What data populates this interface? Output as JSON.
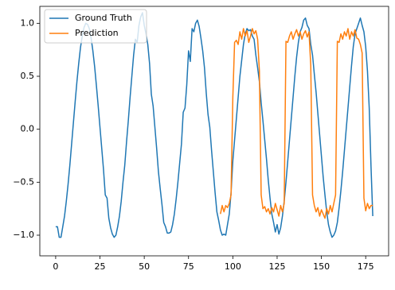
{
  "chart_data": {
    "type": "line",
    "x": [
      0,
      1,
      2,
      3,
      4,
      5,
      6,
      7,
      8,
      9,
      10,
      11,
      12,
      13,
      14,
      15,
      16,
      17,
      18,
      19,
      20,
      21,
      22,
      23,
      24,
      25,
      26,
      27,
      28,
      29,
      30,
      31,
      32,
      33,
      34,
      35,
      36,
      37,
      38,
      39,
      40,
      41,
      42,
      43,
      44,
      45,
      46,
      47,
      48,
      49,
      50,
      51,
      52,
      53,
      54,
      55,
      56,
      57,
      58,
      59,
      60,
      61,
      62,
      63,
      64,
      65,
      66,
      67,
      68,
      69,
      70,
      71,
      72,
      73,
      74,
      75,
      76,
      77,
      78,
      79,
      80,
      81,
      82,
      83,
      84,
      85,
      86,
      87,
      88,
      89,
      90,
      91,
      92,
      93,
      94,
      95,
      96,
      97,
      98,
      99,
      100,
      101,
      102,
      103,
      104,
      105,
      106,
      107,
      108,
      109,
      110,
      111,
      112,
      113,
      114,
      115,
      116,
      117,
      118,
      119,
      120,
      121,
      122,
      123,
      124,
      125,
      126,
      127,
      128,
      129,
      130,
      131,
      132,
      133,
      134,
      135,
      136,
      137,
      138,
      139,
      140,
      141,
      142,
      143,
      144,
      145,
      146,
      147,
      148,
      149,
      150,
      151,
      152,
      153,
      154,
      155,
      156,
      157,
      158,
      159,
      160,
      161,
      162,
      163,
      164,
      165,
      166,
      167,
      168,
      169,
      170,
      171,
      172,
      173,
      174,
      175,
      176,
      177,
      178,
      179
    ],
    "series": [
      {
        "name": "Ground Truth",
        "color": "#1f77b4",
        "values": [
          -0.92,
          -0.92,
          -1.02,
          -1.02,
          -0.92,
          -0.82,
          -0.68,
          -0.52,
          -0.34,
          -0.14,
          0.06,
          0.26,
          0.45,
          0.62,
          0.77,
          0.88,
          0.96,
          1.0,
          0.99,
          0.95,
          0.86,
          0.74,
          0.59,
          0.41,
          0.22,
          0.02,
          -0.18,
          -0.38,
          -0.62,
          -0.65,
          -0.84,
          -0.93,
          -0.99,
          -1.02,
          -1.0,
          -0.92,
          -0.82,
          -0.68,
          -0.5,
          -0.34,
          -0.12,
          0.08,
          0.3,
          0.5,
          0.7,
          0.85,
          0.82,
          0.98,
          1.06,
          1.1,
          0.98,
          0.9,
          0.8,
          0.62,
          0.33,
          0.22,
          0.02,
          -0.18,
          -0.4,
          -0.56,
          -0.71,
          -0.88,
          -0.92,
          -0.98,
          -0.98,
          -0.97,
          -0.9,
          -0.8,
          -0.66,
          -0.5,
          -0.32,
          -0.14,
          0.16,
          0.2,
          0.42,
          0.74,
          0.64,
          0.95,
          0.92,
          1.0,
          1.03,
          0.97,
          0.86,
          0.74,
          0.58,
          0.34,
          0.14,
          0.02,
          -0.2,
          -0.4,
          -0.6,
          -0.78,
          -0.86,
          -0.95,
          -1.0,
          -0.99,
          -1.0,
          -0.9,
          -0.8,
          -0.6,
          -0.3,
          -0.1,
          0.1,
          0.3,
          0.5,
          0.65,
          0.8,
          0.9,
          0.95,
          0.93,
          0.94,
          0.88,
          0.85,
          0.7,
          0.58,
          0.45,
          0.25,
          0.08,
          -0.1,
          -0.28,
          -0.48,
          -0.65,
          -0.8,
          -0.88,
          -0.97,
          -0.9,
          -0.99,
          -0.93,
          -0.82,
          -0.68,
          -0.5,
          -0.3,
          -0.1,
          0.1,
          0.3,
          0.5,
          0.68,
          0.82,
          0.92,
          0.96,
          1.03,
          1.05,
          0.98,
          0.95,
          0.8,
          0.7,
          0.52,
          0.35,
          0.15,
          -0.05,
          -0.25,
          -0.45,
          -0.62,
          -0.78,
          -0.9,
          -0.97,
          -1.02,
          -1.0,
          -0.96,
          -0.88,
          -0.74,
          -0.58,
          -0.4,
          -0.2,
          0.0,
          0.2,
          0.4,
          0.6,
          0.78,
          0.9,
          0.95,
          1.0,
          1.05,
          0.98,
          0.92,
          0.78,
          0.55,
          0.2,
          -0.35,
          -0.82
        ]
      },
      {
        "name": "Prediction",
        "color": "#ff7f0e",
        "values": [
          null,
          null,
          null,
          null,
          null,
          null,
          null,
          null,
          null,
          null,
          null,
          null,
          null,
          null,
          null,
          null,
          null,
          null,
          null,
          null,
          null,
          null,
          null,
          null,
          null,
          null,
          null,
          null,
          null,
          null,
          null,
          null,
          null,
          null,
          null,
          null,
          null,
          null,
          null,
          null,
          null,
          null,
          null,
          null,
          null,
          null,
          null,
          null,
          null,
          null,
          null,
          null,
          null,
          null,
          null,
          null,
          null,
          null,
          null,
          null,
          null,
          null,
          null,
          null,
          null,
          null,
          null,
          null,
          null,
          null,
          null,
          null,
          null,
          null,
          null,
          null,
          null,
          null,
          null,
          null,
          null,
          null,
          null,
          null,
          null,
          null,
          null,
          null,
          null,
          null,
          null,
          null,
          null,
          -0.8,
          -0.72,
          -0.78,
          -0.72,
          -0.74,
          -0.7,
          -0.62,
          0.3,
          0.82,
          0.84,
          0.8,
          0.92,
          0.85,
          0.95,
          0.88,
          0.93,
          0.82,
          0.88,
          0.95,
          0.9,
          0.93,
          0.85,
          0.55,
          -0.62,
          -0.75,
          -0.73,
          -0.78,
          -0.75,
          -0.8,
          -0.74,
          -0.78,
          -0.7,
          -0.76,
          -0.82,
          -0.72,
          -0.78,
          -0.7,
          0.83,
          0.82,
          0.88,
          0.92,
          0.85,
          0.9,
          0.94,
          0.88,
          0.92,
          0.85,
          0.9,
          0.93,
          0.87,
          0.92,
          0.6,
          -0.62,
          -0.72,
          -0.78,
          -0.74,
          -0.82,
          -0.76,
          -0.8,
          -0.84,
          -0.75,
          -0.8,
          -0.72,
          -0.78,
          -0.7,
          -0.62,
          0.83,
          0.82,
          0.9,
          0.85,
          0.92,
          0.88,
          0.95,
          0.85,
          0.92,
          0.88,
          0.94,
          0.86,
          0.85,
          0.8,
          0.72,
          -0.65,
          -0.77,
          -0.7,
          -0.75,
          -0.72,
          -0.72
        ]
      }
    ],
    "xlim": [
      -8.95,
      187.95
    ],
    "ylim": [
      -1.195,
      1.16
    ],
    "xticks": [
      0,
      25,
      50,
      75,
      100,
      125,
      150,
      175
    ],
    "yticks": [
      {
        "value": -1,
        "label": "−1.0"
      },
      {
        "value": -0.5,
        "label": "−0.5"
      },
      {
        "value": 0,
        "label": "0.0"
      },
      {
        "value": 0.5,
        "label": "0.5"
      },
      {
        "value": 1,
        "label": "1.0"
      }
    ],
    "legend": "upper left"
  }
}
